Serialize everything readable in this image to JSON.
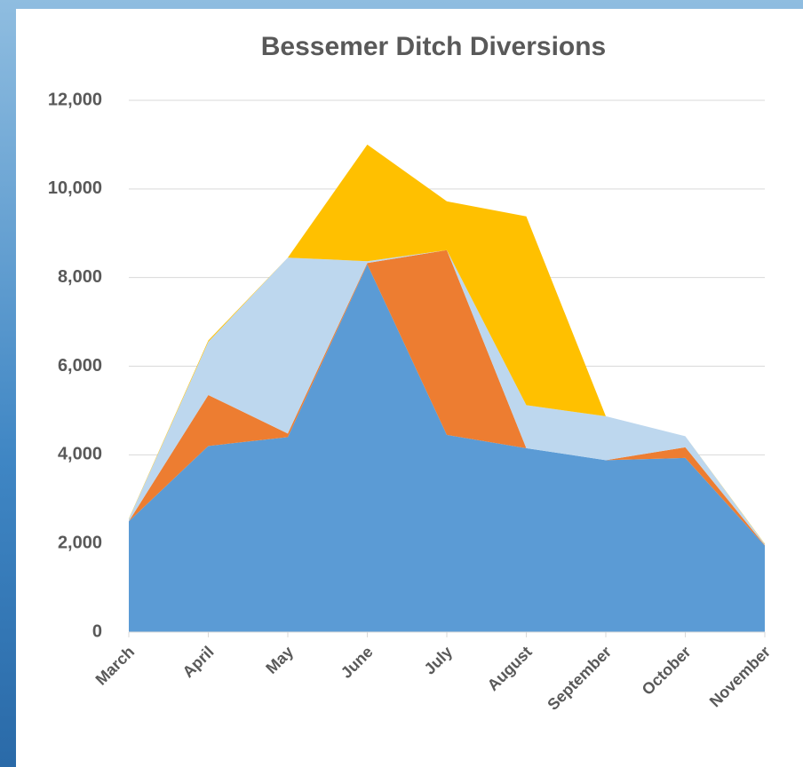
{
  "chart_data": {
    "type": "stacked_area",
    "title": "Bessemer Ditch Diversions",
    "categories": [
      "March",
      "April",
      "May",
      "June",
      "July",
      "August",
      "September",
      "October",
      "November"
    ],
    "series": [
      {
        "color": "#5b9bd5",
        "values": [
          2500,
          4200,
          4400,
          8300,
          4450,
          4150,
          3880,
          3930,
          1950
        ]
      },
      {
        "color": "#ed7d31",
        "values": [
          0,
          1150,
          80,
          30,
          4170,
          0,
          0,
          240,
          10
        ]
      },
      {
        "color": "#bdd7ee",
        "values": [
          50,
          1200,
          3970,
          40,
          0,
          970,
          990,
          250,
          20
        ]
      },
      {
        "color": "#ffc000",
        "values": [
          10,
          30,
          0,
          2630,
          1100,
          4260,
          0,
          0,
          10
        ]
      }
    ],
    "ylim": [
      0,
      12000
    ],
    "yticks": [
      0,
      {
        "value": 2000,
        "label": "2,000"
      },
      {
        "value": 4000,
        "label": "4,000"
      },
      {
        "value": 6000,
        "label": "6,000"
      },
      {
        "value": 8000,
        "label": "8,000"
      },
      {
        "value": 10000,
        "label": "10,000"
      },
      {
        "value": 12000,
        "label": "12,000"
      }
    ],
    "grid": true
  }
}
